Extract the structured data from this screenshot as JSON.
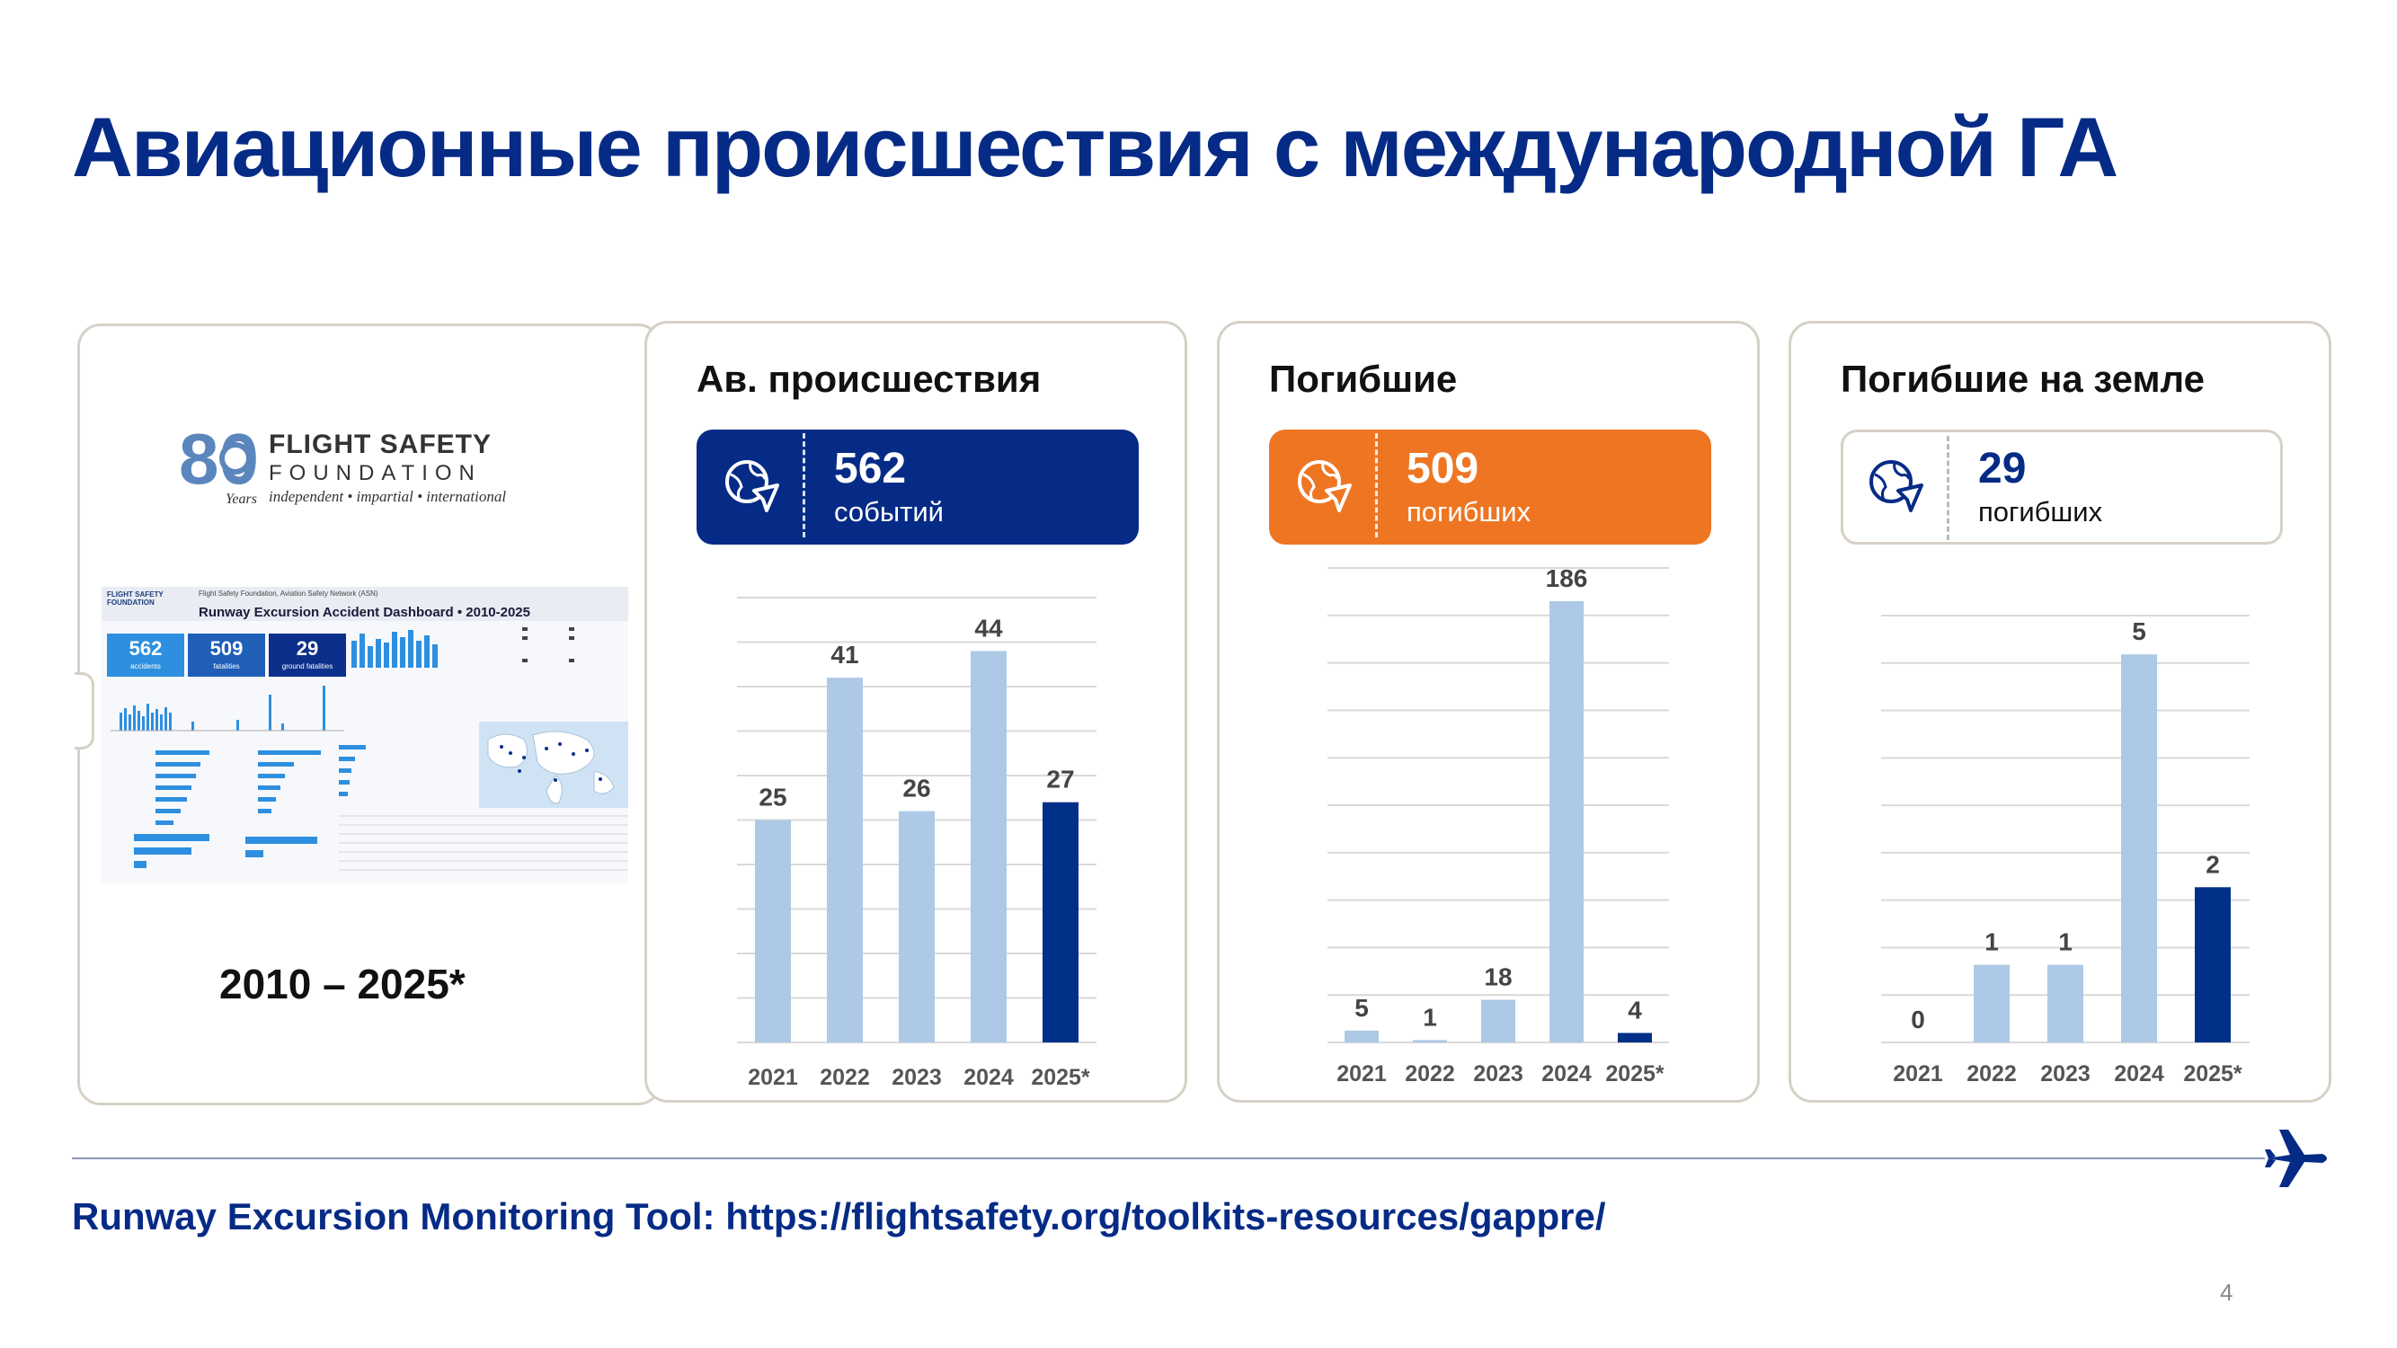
{
  "title": "Авиационные происшествия с международной ГА",
  "colors": {
    "brand_blue": "#062b86",
    "light_bar": "#adc9e6",
    "dark_bar": "#003087",
    "orange": "#ee7623",
    "card_border": "#d6d0c6"
  },
  "left_card": {
    "logo": {
      "number": "80",
      "years": "Years",
      "line1": "FLIGHT SAFETY",
      "line2": "FOUNDATION",
      "tagline": "independent • impartial • international"
    },
    "dashboard_thumbnail": {
      "org": "FLIGHT SAFETY FOUNDATION",
      "source": "Flight Safety Foundation, Aviation Safety Network (ASN)",
      "title": "Runway Excursion Accident Dashboard • 2010-2025",
      "kpis": [
        {
          "value": "562",
          "label": "accidents"
        },
        {
          "value": "509",
          "label": "fatalities"
        },
        {
          "value": "29",
          "label": "ground fatalities"
        }
      ]
    },
    "range_label": "2010 – 2025*"
  },
  "panels": [
    {
      "title": "Ав. происшествия",
      "kpi_value": "562",
      "kpi_label": "событий",
      "kpi_style": "blue",
      "icon": "globe-plane-icon"
    },
    {
      "title": "Погибшие",
      "kpi_value": "509",
      "kpi_label": "погибших",
      "kpi_style": "orange",
      "icon": "globe-plane-icon"
    },
    {
      "title": "Погибшие на земле",
      "kpi_value": "29",
      "kpi_label": "погибших",
      "kpi_style": "outline",
      "icon": "globe-plane-icon"
    }
  ],
  "chart_data": [
    {
      "type": "bar",
      "categories": [
        "2021",
        "2022",
        "2023",
        "2024",
        "2025*"
      ],
      "values": [
        25,
        41,
        26,
        44,
        27
      ],
      "highlight": "2025*",
      "ylim": [
        0,
        50
      ],
      "grid": true,
      "title": "",
      "xlabel": "",
      "ylabel": ""
    },
    {
      "type": "bar",
      "categories": [
        "2021",
        "2022",
        "2023",
        "2024",
        "2025*"
      ],
      "values": [
        5,
        1,
        18,
        186,
        4
      ],
      "highlight": "2025*",
      "ylim": [
        0,
        200
      ],
      "grid": true,
      "title": "",
      "xlabel": "",
      "ylabel": ""
    },
    {
      "type": "bar",
      "categories": [
        "2021",
        "2022",
        "2023",
        "2024",
        "2025*"
      ],
      "values": [
        0,
        1,
        1,
        5,
        2
      ],
      "highlight": "2025*",
      "ylim": [
        0,
        5.5
      ],
      "grid": true,
      "title": "",
      "xlabel": "",
      "ylabel": ""
    }
  ],
  "footer": {
    "link_text": "Runway Excursion Monitoring Tool: https://flightsafety.org/toolkits-resources/gappre/",
    "page_number": "4"
  }
}
